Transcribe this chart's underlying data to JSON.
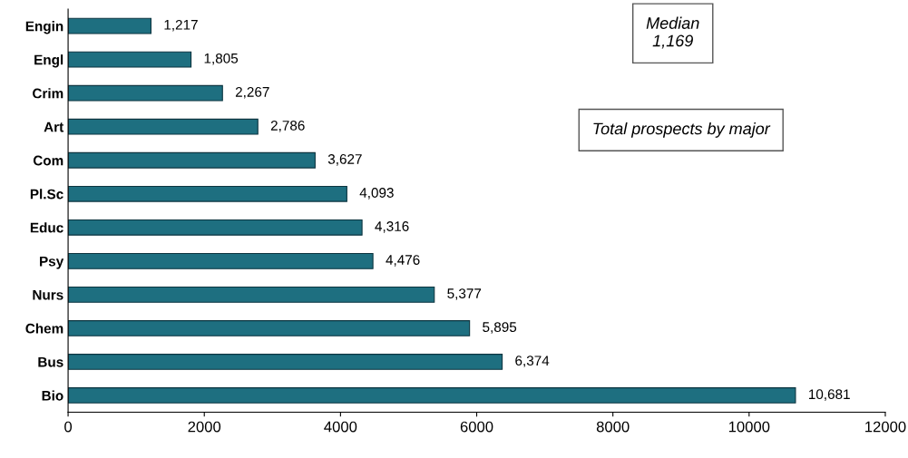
{
  "chart_data": {
    "type": "bar",
    "orientation": "horizontal",
    "categories": [
      "Engin",
      "Engl",
      "Crim",
      "Art",
      "Com",
      "Pl.Sc",
      "Educ",
      "Psy",
      "Nurs",
      "Chem",
      "Bus",
      "Bio"
    ],
    "values": [
      1217,
      1805,
      2267,
      2786,
      3627,
      4093,
      4316,
      4476,
      5377,
      5895,
      6374,
      10681
    ],
    "value_labels": [
      "1,217",
      "1,805",
      "2,267",
      "2,786",
      "3,627",
      "4,093",
      "4,316",
      "4,476",
      "5,377",
      "5,895",
      "6,374",
      "10,681"
    ],
    "color": "#1e6f80",
    "xlim": [
      0,
      12000
    ],
    "xticks": [
      0,
      2000,
      4000,
      6000,
      8000,
      10000,
      12000
    ],
    "grid": false,
    "annotations": [
      "Median\n1,169",
      "Total prospects by major"
    ]
  }
}
